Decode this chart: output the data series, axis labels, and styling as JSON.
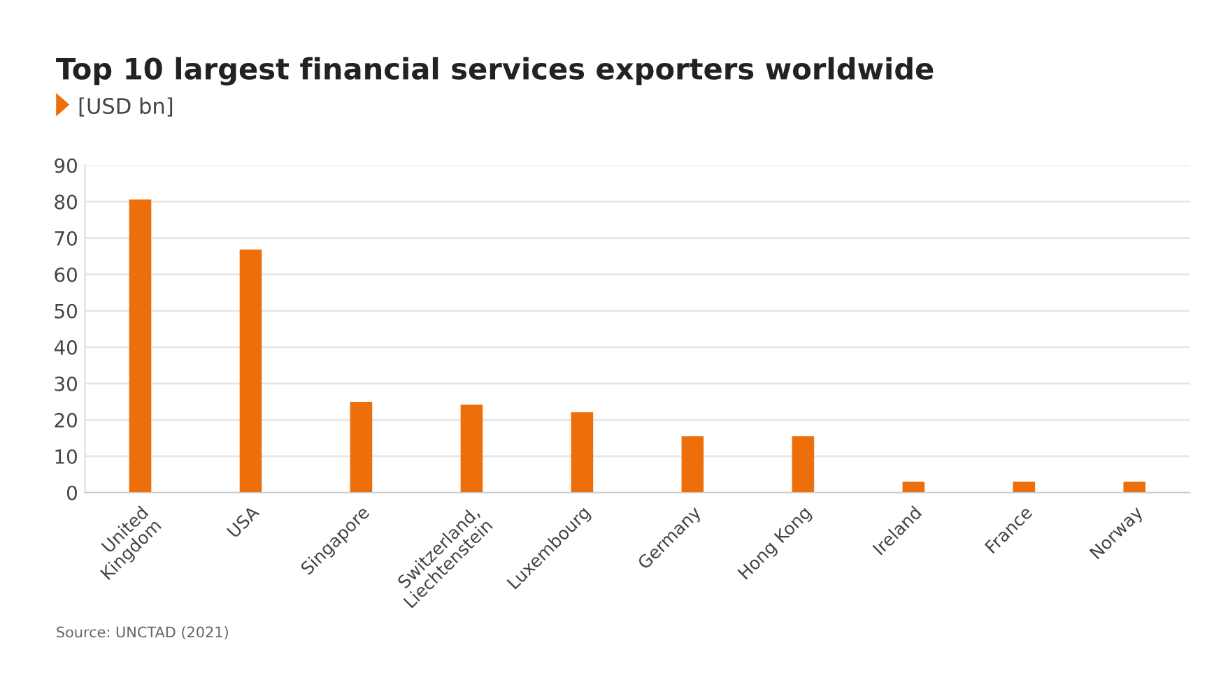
{
  "chart_data": {
    "type": "bar",
    "title": "Top 10 largest financial services exporters worldwide",
    "subtitle": "[USD bn]",
    "categories": [
      "United\nKingdom",
      "USA",
      "Singapore",
      "Switzerland,\nLiechtenstein",
      "Luxembourg",
      "Germany",
      "Hong Kong",
      "Ireland",
      "France",
      "Norway"
    ],
    "values": [
      80.6,
      66.8,
      25.0,
      24.2,
      22.1,
      15.5,
      15.5,
      3.0,
      3.0,
      3.0
    ],
    "color": "#ec6f0b",
    "ylim": [
      0,
      90
    ],
    "yticks": [
      0,
      10,
      20,
      30,
      40,
      50,
      60,
      70,
      80,
      90
    ],
    "grid": "y",
    "annotations": [
      "Source: UNCTAD (2021)"
    ]
  }
}
